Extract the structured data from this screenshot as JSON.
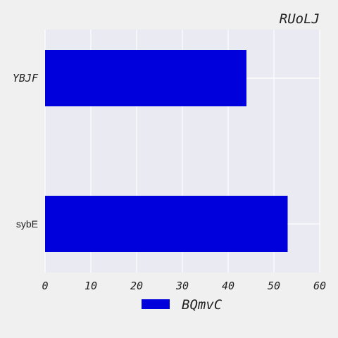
{
  "chart_data": {
    "type": "bar",
    "orientation": "horizontal",
    "title": "RUoLJ",
    "categories": [
      "YBJF",
      "sybE"
    ],
    "series": [
      {
        "name": "BQmvC",
        "values": [
          44,
          53
        ],
        "color": "#0000dd"
      }
    ],
    "xlim": [
      0,
      60
    ],
    "x_ticks": [
      "0",
      "10",
      "20",
      "30",
      "40",
      "50",
      "60"
    ],
    "xlabel": "",
    "ylabel": "",
    "grid": true,
    "legend_position": "bottom-center",
    "background_color": "#eaeaf2",
    "page_color": "#f0f0f0"
  }
}
